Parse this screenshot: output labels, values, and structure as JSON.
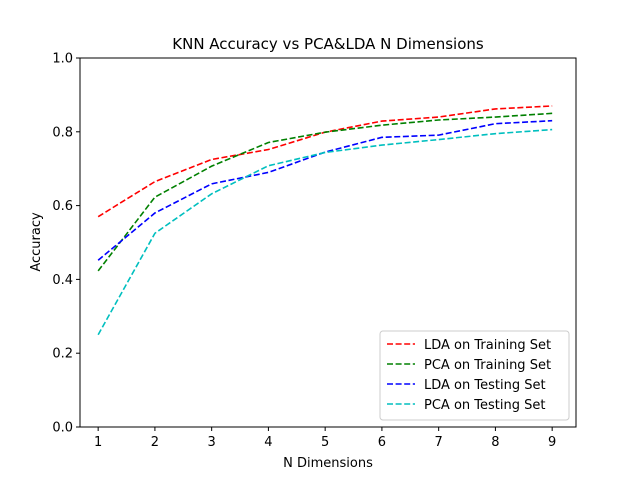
{
  "chart_data": {
    "type": "line",
    "title": "KNN Accuracy vs PCA&LDA N Dimensions",
    "xlabel": "N Dimensions",
    "ylabel": "Accuracy",
    "xlim": [
      0.68,
      9.42
    ],
    "ylim": [
      0.0,
      1.0
    ],
    "xticks": [
      1,
      2,
      3,
      4,
      5,
      6,
      7,
      8,
      9
    ],
    "yticks": [
      0.0,
      0.2,
      0.4,
      0.6,
      0.8,
      1.0
    ],
    "ytick_labels": [
      "0.0",
      "0.2",
      "0.4",
      "0.6",
      "0.8",
      "1.0"
    ],
    "grid": false,
    "legend_position": "lower-right",
    "x": [
      1,
      2,
      3,
      4,
      5,
      6,
      7,
      8,
      9
    ],
    "series": [
      {
        "name": "LDA on Training Set",
        "color": "#ff0000",
        "style": "dashed",
        "values": [
          0.57,
          0.665,
          0.725,
          0.752,
          0.799,
          0.829,
          0.84,
          0.862,
          0.87
        ]
      },
      {
        "name": "PCA on Training Set",
        "color": "#008000",
        "style": "dashed",
        "values": [
          0.423,
          0.623,
          0.707,
          0.771,
          0.799,
          0.818,
          0.832,
          0.84,
          0.85
        ]
      },
      {
        "name": "LDA on Testing Set",
        "color": "#0000ff",
        "style": "dashed",
        "values": [
          0.452,
          0.58,
          0.659,
          0.69,
          0.745,
          0.785,
          0.791,
          0.822,
          0.83
        ]
      },
      {
        "name": "PCA on Testing Set",
        "color": "#00bfbf",
        "style": "dashed",
        "values": [
          0.25,
          0.525,
          0.632,
          0.708,
          0.744,
          0.764,
          0.779,
          0.795,
          0.806
        ]
      }
    ]
  }
}
